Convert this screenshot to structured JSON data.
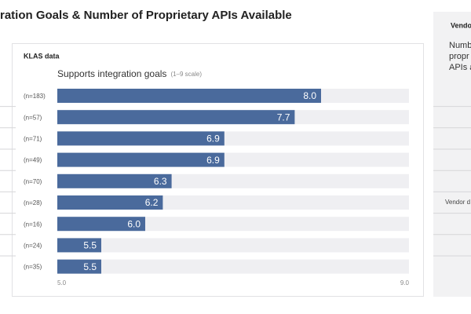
{
  "chart_data": {
    "type": "bar",
    "orientation": "horizontal",
    "title": "ration Goals & Number of Proprietary APIs Available",
    "source_label": "KLAS data",
    "axis_title": "Supports integration goals",
    "axis_note": "(1–9 scale)",
    "categories": [
      "(n=183)",
      "(n=57)",
      "(n=71)",
      "(n=49)",
      "(n=70)",
      "(n=28)",
      "(n=16)",
      "(n=24)",
      "(n=35)"
    ],
    "values": [
      8.0,
      7.7,
      6.9,
      6.9,
      6.3,
      6.2,
      6.0,
      5.5,
      5.5
    ],
    "value_labels": [
      "8.0",
      "7.7",
      "6.9",
      "6.9",
      "6.3",
      "6.2",
      "6.0",
      "5.5",
      "5.5"
    ],
    "color": "#4a6a9c",
    "xlim": [
      5,
      9
    ],
    "xticks": [
      {
        "value": 5,
        "label": "5.0"
      },
      {
        "value": 9,
        "label": "9.0"
      }
    ]
  },
  "side_panel": {
    "heading": "Vendo",
    "lines": [
      "Numb",
      "propr",
      "APIs a"
    ],
    "row_label": "Vendor d"
  }
}
